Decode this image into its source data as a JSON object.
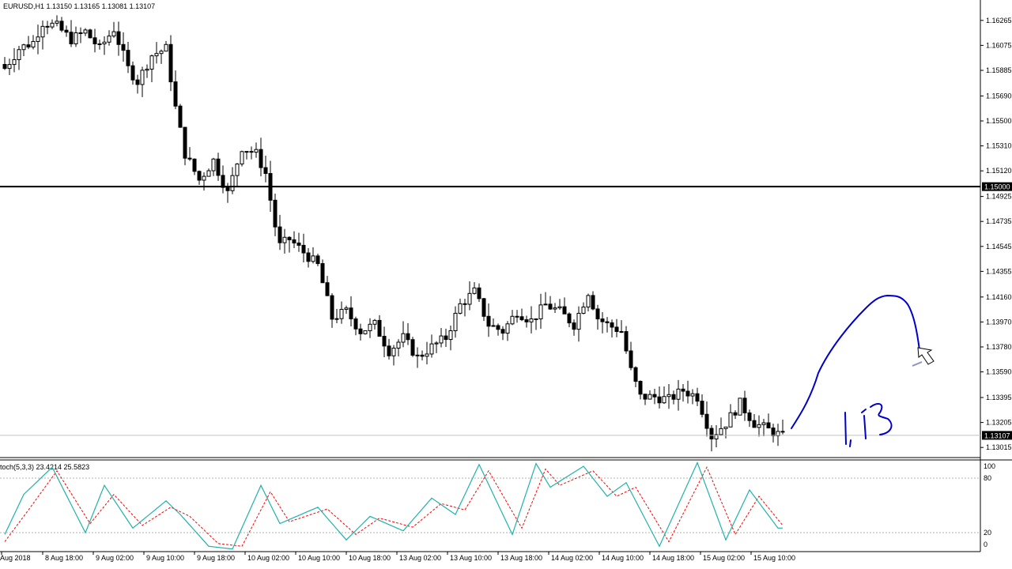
{
  "header": {
    "symbol_info": "EURUSD,H1  1.13150 1.13165 1.13081 1.13107"
  },
  "indicator": {
    "label": "toch(5,3,3) 23.4214 25.5823",
    "levels": [
      "100",
      "80",
      "20",
      "0"
    ]
  },
  "annotation": {
    "handwritten_text": "1.13"
  },
  "colors": {
    "background": "#ffffff",
    "candle": "#000000",
    "stoch_main": "#20b2aa",
    "stoch_signal": "#ff0000",
    "drawing": "#0000cd",
    "price_tag_bg": "#000000",
    "price_tag_text": "#ffffff"
  },
  "chart_data": {
    "type": "candlestick",
    "timeframe": "H1",
    "price_axis": {
      "min": 1.1295,
      "max": 1.1633,
      "ticks": [
        "1.16265",
        "1.16075",
        "1.15885",
        "1.15690",
        "1.15500",
        "1.15310",
        "1.15120",
        "1.14925",
        "1.14735",
        "1.14545",
        "1.14355",
        "1.14160",
        "1.13970",
        "1.13780",
        "1.13590",
        "1.13395",
        "1.13205",
        "1.13015"
      ]
    },
    "horizontal_line": {
      "value": 1.15,
      "label": "1.15000"
    },
    "current_price": {
      "value": 1.13107,
      "label": "1.13107"
    },
    "time_labels": [
      "Aug 2018",
      "8 Aug 18:00",
      "9 Aug 02:00",
      "9 Aug 10:00",
      "9 Aug 18:00",
      "10 Aug 02:00",
      "10 Aug 10:00",
      "10 Aug 18:00",
      "13 Aug 02:00",
      "13 Aug 10:00",
      "13 Aug 18:00",
      "14 Aug 02:00",
      "14 Aug 10:00",
      "14 Aug 18:00",
      "15 Aug 02:00",
      "15 Aug 10:00"
    ],
    "close_anchors": [
      [
        0,
        1.159
      ],
      [
        3,
        1.1605
      ],
      [
        6,
        1.161
      ],
      [
        8,
        1.1625
      ],
      [
        11,
        1.1622
      ],
      [
        14,
        1.1612
      ],
      [
        17,
        1.1618
      ],
      [
        20,
        1.1605
      ],
      [
        23,
        1.162
      ],
      [
        26,
        1.159
      ],
      [
        28,
        1.158
      ],
      [
        31,
        1.16
      ],
      [
        34,
        1.1605
      ],
      [
        36,
        1.156
      ],
      [
        38,
        1.1525
      ],
      [
        41,
        1.1505
      ],
      [
        44,
        1.152
      ],
      [
        47,
        1.1495
      ],
      [
        50,
        1.153
      ],
      [
        53,
        1.1525
      ],
      [
        55,
        1.151
      ],
      [
        57,
        1.147
      ],
      [
        58,
        1.1455
      ],
      [
        60,
        1.146
      ],
      [
        63,
        1.145
      ],
      [
        66,
        1.144
      ],
      [
        69,
        1.14
      ],
      [
        72,
        1.1405
      ],
      [
        75,
        1.139
      ],
      [
        78,
        1.1395
      ],
      [
        81,
        1.1375
      ],
      [
        84,
        1.1385
      ],
      [
        87,
        1.137
      ],
      [
        90,
        1.1378
      ],
      [
        93,
        1.1385
      ],
      [
        96,
        1.141
      ],
      [
        99,
        1.142
      ],
      [
        102,
        1.1395
      ],
      [
        105,
        1.139
      ],
      [
        108,
        1.1405
      ],
      [
        111,
        1.1398
      ],
      [
        114,
        1.141
      ],
      [
        117,
        1.1405
      ],
      [
        120,
        1.1395
      ],
      [
        123,
        1.142
      ],
      [
        125,
        1.14
      ],
      [
        127,
        1.1395
      ],
      [
        130,
        1.139
      ],
      [
        132,
        1.136
      ],
      [
        134,
        1.134
      ],
      [
        137,
        1.134
      ],
      [
        140,
        1.1338
      ],
      [
        143,
        1.1345
      ],
      [
        146,
        1.134
      ],
      [
        149,
        1.131
      ],
      [
        152,
        1.132
      ],
      [
        155,
        1.1335
      ],
      [
        158,
        1.132
      ],
      [
        161,
        1.1315
      ],
      [
        164,
        1.131
      ]
    ],
    "stoch_anchors_main": [
      [
        0,
        18
      ],
      [
        4,
        62
      ],
      [
        10,
        92
      ],
      [
        17,
        20
      ],
      [
        21,
        72
      ],
      [
        27,
        25
      ],
      [
        34,
        55
      ],
      [
        37,
        40
      ],
      [
        43,
        5
      ],
      [
        48,
        2
      ],
      [
        54,
        72
      ],
      [
        58,
        30
      ],
      [
        66,
        48
      ],
      [
        72,
        12
      ],
      [
        77,
        38
      ],
      [
        84,
        22
      ],
      [
        90,
        58
      ],
      [
        95,
        40
      ],
      [
        100,
        95
      ],
      [
        107,
        18
      ],
      [
        112,
        96
      ],
      [
        115,
        70
      ],
      [
        122,
        93
      ],
      [
        127,
        60
      ],
      [
        131,
        75
      ],
      [
        138,
        5
      ],
      [
        146,
        97
      ],
      [
        152,
        12
      ],
      [
        157,
        67
      ],
      [
        163,
        25
      ]
    ],
    "stoch_anchors_signal": [
      [
        0,
        10
      ],
      [
        5,
        45
      ],
      [
        11,
        88
      ],
      [
        18,
        30
      ],
      [
        23,
        62
      ],
      [
        29,
        28
      ],
      [
        35,
        48
      ],
      [
        39,
        38
      ],
      [
        45,
        8
      ],
      [
        50,
        5
      ],
      [
        56,
        65
      ],
      [
        60,
        32
      ],
      [
        68,
        46
      ],
      [
        74,
        18
      ],
      [
        79,
        36
      ],
      [
        86,
        26
      ],
      [
        92,
        52
      ],
      [
        97,
        45
      ],
      [
        102,
        88
      ],
      [
        109,
        25
      ],
      [
        114,
        90
      ],
      [
        117,
        72
      ],
      [
        124,
        88
      ],
      [
        129,
        60
      ],
      [
        133,
        70
      ],
      [
        140,
        10
      ],
      [
        148,
        92
      ],
      [
        154,
        18
      ],
      [
        159,
        60
      ],
      [
        164,
        28
      ]
    ],
    "num_candles": 165
  }
}
